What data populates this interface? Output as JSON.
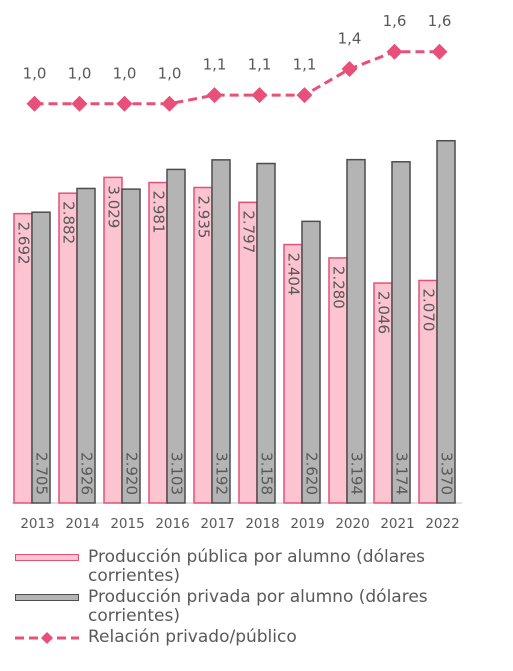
{
  "chart_data": {
    "type": "bar",
    "categories": [
      "2013",
      "2014",
      "2015",
      "2016",
      "2017",
      "2018",
      "2019",
      "2020",
      "2021",
      "2022"
    ],
    "ylim": [
      0,
      4400
    ],
    "y2lim": [
      -3.6,
      1.85
    ],
    "series": [
      {
        "name": "Producción pública por alumno (dólares corrientes)",
        "type": "bar",
        "color": "#fcc3d0",
        "stroke": "#e0527a",
        "values": [
          2692,
          2882,
          3029,
          2981,
          2935,
          2797,
          2404,
          2280,
          2046,
          2070
        ],
        "value_labels": [
          "2.692",
          "2.882",
          "3.029",
          "2.981",
          "2.935",
          "2.797",
          "2.404",
          "2.280",
          "2.046",
          "2.070"
        ]
      },
      {
        "name": "Producción privada por alumno (dólares corrientes)",
        "type": "bar",
        "color": "#b4b4b4",
        "stroke": "#4d4d4d",
        "values": [
          2705,
          2926,
          2920,
          3103,
          3192,
          3158,
          2620,
          3194,
          3174,
          3370
        ],
        "value_labels": [
          "2.705",
          "2.926",
          "2.920",
          "3.103",
          "3.192",
          "3.158",
          "2.620",
          "3.194",
          "3.174",
          "3.370"
        ]
      },
      {
        "name": "Relación privado/público",
        "type": "line",
        "axis": "y2",
        "color": "#e8507a",
        "values": [
          1.0,
          1.0,
          1.0,
          1.0,
          1.1,
          1.1,
          1.1,
          1.4,
          1.6,
          1.6
        ],
        "value_labels": [
          "1,0",
          "1,0",
          "1,0",
          "1,0",
          "1,1",
          "1,1",
          "1,1",
          "1,4",
          "1,6",
          "1,6"
        ]
      }
    ]
  }
}
